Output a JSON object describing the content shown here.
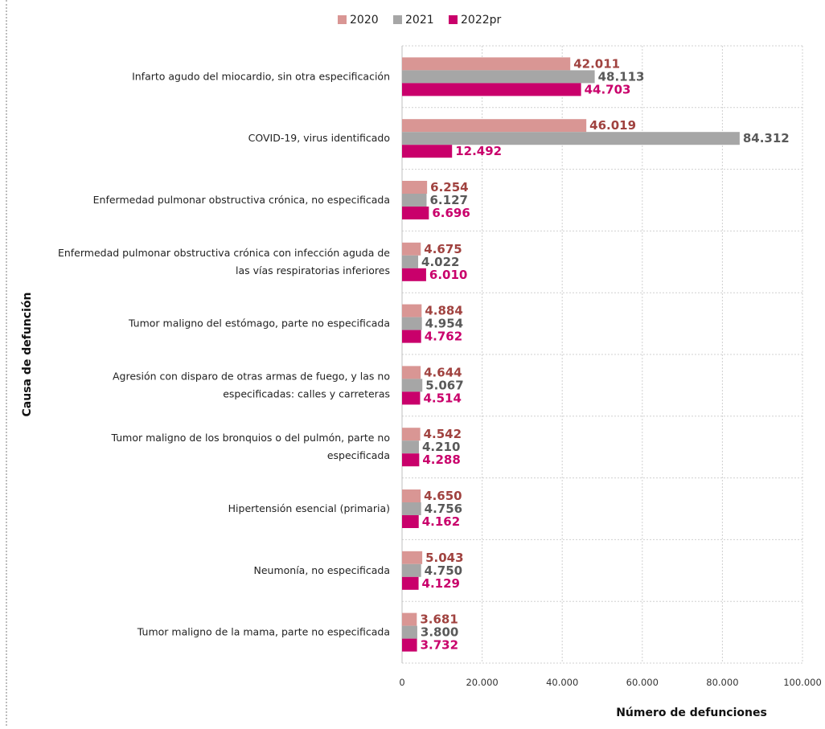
{
  "chart_data": {
    "type": "bar",
    "orientation": "horizontal",
    "categories": [
      "Infarto agudo del miocardio, sin otra especificación",
      "COVID-19, virus identificado",
      "Enfermedad pulmonar obstructiva crónica, no especificada",
      "Enfermedad pulmonar obstructiva crónica con infección aguda de las vías respiratorias inferiores",
      "Tumor maligno del estómago, parte no especificada",
      "Agresión con disparo de otras armas de fuego, y las no especificadas: calles y carreteras",
      "Tumor maligno de los bronquios o del pulmón, parte no especificada",
      "Hipertensión esencial (primaria)",
      "Neumonía, no especificada",
      "Tumor maligno de la mama, parte no especificada"
    ],
    "category_lines": [
      [
        "Infarto agudo del miocardio, sin otra especificación"
      ],
      [
        "COVID-19, virus identificado"
      ],
      [
        "Enfermedad pulmonar obstructiva crónica, no especificada"
      ],
      [
        "Enfermedad pulmonar obstructiva crónica con infección aguda de",
        "las vías respiratorias inferiores"
      ],
      [
        "Tumor maligno del estómago, parte no especificada"
      ],
      [
        "Agresión con disparo de otras armas de fuego, y las no",
        "especificadas: calles y carreteras"
      ],
      [
        "Tumor maligno de los bronquios o del pulmón, parte no",
        "especificada"
      ],
      [
        "Hipertensión esencial (primaria)"
      ],
      [
        "Neumonía, no especificada"
      ],
      [
        "Tumor maligno de la mama, parte no especificada"
      ]
    ],
    "series": [
      {
        "name": "2020",
        "color": "#d99694",
        "label_color": "#a0423f",
        "values": [
          42011,
          46019,
          6254,
          4675,
          4884,
          4644,
          4542,
          4650,
          5043,
          3681
        ],
        "labels": [
          "42.011",
          "46.019",
          "6.254",
          "4.675",
          "4.884",
          "4.644",
          "4.542",
          "4.650",
          "5.043",
          "3.681"
        ]
      },
      {
        "name": "2021",
        "color": "#a6a6a6",
        "label_color": "#595959",
        "values": [
          48113,
          84312,
          6127,
          4022,
          4954,
          5067,
          4210,
          4756,
          4750,
          3800
        ],
        "labels": [
          "48.113",
          "84.312",
          "6.127",
          "4.022",
          "4.954",
          "5.067",
          "4.210",
          "4.756",
          "4.750",
          "3.800"
        ]
      },
      {
        "name": "2022pr",
        "color": "#c9006b",
        "label_color": "#c9006b",
        "values": [
          44703,
          12492,
          6696,
          6010,
          4762,
          4514,
          4288,
          4162,
          4129,
          3732
        ],
        "labels": [
          "44.703",
          "12.492",
          "6.696",
          "6.010",
          "4.762",
          "4.514",
          "4.288",
          "4.162",
          "4.129",
          "3.732"
        ]
      }
    ],
    "xlim": [
      0,
      100000
    ],
    "xticks": [
      0,
      20000,
      40000,
      60000,
      80000,
      100000
    ],
    "xtick_labels": [
      "0",
      "20.000",
      "40.000",
      "60.000",
      "80.000",
      "100.000"
    ],
    "xlabel": "Número de defunciones",
    "ylabel": "Causa de defunción",
    "grid": true,
    "legend_position": "top"
  }
}
